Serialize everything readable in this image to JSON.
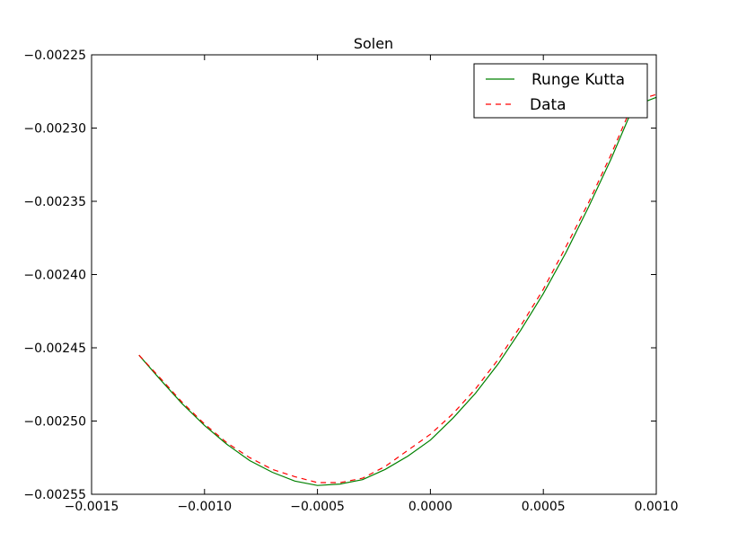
{
  "chart_data": {
    "type": "line",
    "title": "Solen",
    "xlabel": "",
    "ylabel": "",
    "xlim": [
      -0.0015,
      0.001
    ],
    "ylim": [
      -0.00255,
      -0.00225
    ],
    "x_ticks": [
      -0.0015,
      -0.001,
      -0.0005,
      0.0,
      0.0005,
      0.001
    ],
    "x_tick_labels": [
      "−0.0015",
      "−0.0010",
      "−0.0005",
      "0.0000",
      "0.0005",
      "0.0010"
    ],
    "y_ticks": [
      -0.00225,
      -0.0023,
      -0.00235,
      -0.0024,
      -0.00245,
      -0.0025,
      -0.00255
    ],
    "y_tick_labels": [
      "−0.00225",
      "−0.00230",
      "−0.00235",
      "−0.00240",
      "−0.00245",
      "−0.00250",
      "−0.00255"
    ],
    "grid": false,
    "legend_position": "top-right",
    "series": [
      {
        "name": "Runge Kutta",
        "color": "#008000",
        "style": "solid",
        "x": [
          -0.00129,
          -0.0012,
          -0.0011,
          -0.001,
          -0.0009,
          -0.0008,
          -0.0007,
          -0.0006,
          -0.0005,
          -0.0004,
          -0.0003,
          -0.0002,
          -0.0001,
          0.0,
          0.0001,
          0.0002,
          0.0003,
          0.0004,
          0.0005,
          0.0006,
          0.0007,
          0.0008,
          0.0009,
          0.001
        ],
        "y": [
          -0.002455,
          -0.002471,
          -0.002488,
          -0.002503,
          -0.002516,
          -0.002527,
          -0.002535,
          -0.002541,
          -0.002544,
          -0.002543,
          -0.00254,
          -0.002533,
          -0.002524,
          -0.002513,
          -0.002498,
          -0.002481,
          -0.002461,
          -0.002438,
          -0.002413,
          -0.002385,
          -0.002354,
          -0.002321,
          -0.002285,
          -0.002279
        ]
      },
      {
        "name": "Data",
        "color": "#ff0000",
        "style": "dashed",
        "x": [
          -0.00129,
          -0.0012,
          -0.0011,
          -0.001,
          -0.0009,
          -0.0008,
          -0.0007,
          -0.0006,
          -0.0005,
          -0.0004,
          -0.0003,
          -0.0002,
          -0.0001,
          0.0,
          0.0001,
          0.0002,
          0.0003,
          0.0004,
          0.0005,
          0.0006,
          0.0007,
          0.0008,
          0.0009,
          0.001
        ],
        "y": [
          -0.002455,
          -0.00247,
          -0.002487,
          -0.002502,
          -0.002515,
          -0.002525,
          -0.002533,
          -0.002538,
          -0.002542,
          -0.002542,
          -0.002539,
          -0.002531,
          -0.00252,
          -0.002509,
          -0.002495,
          -0.002478,
          -0.002458,
          -0.002435,
          -0.00241,
          -0.002381,
          -0.002351,
          -0.002318,
          -0.002282,
          -0.002277
        ]
      }
    ]
  }
}
